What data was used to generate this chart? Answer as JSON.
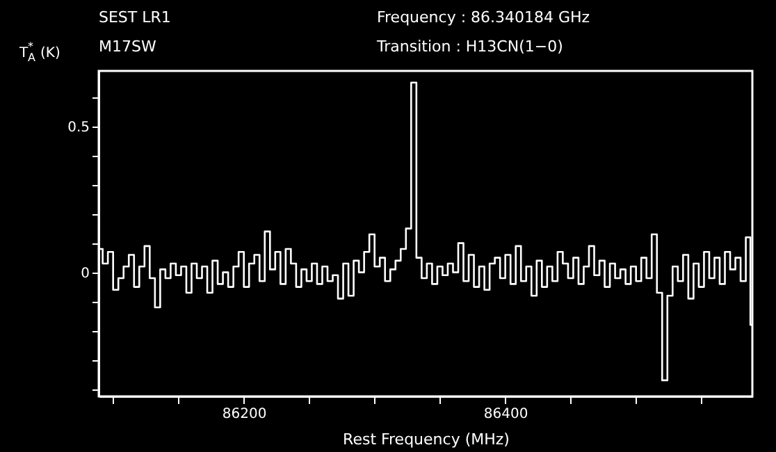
{
  "chart_data": {
    "type": "step",
    "title": "SEST LR1",
    "subtitle": "M17SW",
    "annotations": [
      "Frequency   : 86.340184 GHz",
      "Transition  : H13CN(1−0)"
    ],
    "xlabel": "Rest Frequency (MHz)",
    "ylabel": "T$_{A}$$^{*}$ (K)",
    "x": [
      86090,
      86094,
      86098,
      86102,
      86106,
      86110,
      86114,
      86118,
      86122,
      86126,
      86130,
      86134,
      86138,
      86142,
      86146,
      86150,
      86154,
      86158,
      86162,
      86166,
      86170,
      86174,
      86178,
      86182,
      86186,
      86190,
      86194,
      86198,
      86202,
      86206,
      86210,
      86214,
      86218,
      86222,
      86226,
      86230,
      86234,
      86238,
      86242,
      86246,
      86250,
      86254,
      86258,
      86262,
      86266,
      86270,
      86274,
      86278,
      86282,
      86286,
      86290,
      86294,
      86298,
      86302,
      86306,
      86310,
      86314,
      86318,
      86322,
      86326,
      86330,
      86334,
      86338,
      86342,
      86346,
      86350,
      86354,
      86358,
      86362,
      86366,
      86370,
      86374,
      86378,
      86382,
      86386,
      86390,
      86394,
      86398,
      86402,
      86406,
      86410,
      86414,
      86418,
      86422,
      86426,
      86430,
      86434,
      86438,
      86442,
      86446,
      86450,
      86454,
      86458,
      86462,
      86466,
      86470,
      86474,
      86478,
      86482,
      86486,
      86490,
      86494,
      86498,
      86502,
      86506,
      86510,
      86514,
      86518,
      86522,
      86526,
      86530,
      86534,
      86538,
      86542,
      86546,
      86550,
      86554,
      86558,
      86562,
      86566,
      86570,
      86574,
      86578,
      86582,
      86586,
      86589
    ],
    "series": [
      {
        "color": "#ffffff",
        "values": [
          0.08,
          0.03,
          0.07,
          -0.06,
          -0.02,
          0.02,
          0.06,
          -0.05,
          0.02,
          0.09,
          -0.02,
          -0.12,
          0.01,
          -0.02,
          0.03,
          -0.01,
          0.02,
          -0.07,
          0.03,
          -0.02,
          0.02,
          -0.07,
          0.04,
          -0.04,
          0.0,
          -0.05,
          0.02,
          0.07,
          -0.05,
          0.03,
          0.06,
          -0.03,
          0.14,
          0.01,
          0.07,
          -0.04,
          0.08,
          0.03,
          -0.05,
          0.01,
          -0.03,
          0.03,
          -0.04,
          0.02,
          -0.03,
          -0.01,
          -0.09,
          0.03,
          -0.08,
          0.04,
          0.0,
          0.07,
          0.13,
          0.02,
          0.05,
          -0.03,
          0.01,
          0.04,
          0.08,
          0.15,
          0.65,
          0.05,
          -0.02,
          0.03,
          -0.04,
          0.02,
          -0.01,
          0.03,
          0.0,
          0.1,
          -0.03,
          0.06,
          -0.05,
          0.02,
          -0.06,
          0.03,
          0.05,
          -0.02,
          0.06,
          -0.04,
          0.09,
          -0.03,
          0.02,
          -0.08,
          0.04,
          -0.05,
          0.02,
          -0.03,
          0.07,
          0.03,
          -0.02,
          0.05,
          -0.04,
          0.02,
          0.09,
          -0.01,
          0.04,
          -0.05,
          0.03,
          -0.02,
          0.01,
          -0.04,
          0.02,
          -0.03,
          0.05,
          -0.02,
          0.13,
          -0.07,
          -0.37,
          -0.08,
          0.02,
          -0.03,
          0.06,
          -0.09,
          0.03,
          -0.05,
          0.07,
          -0.02,
          0.05,
          -0.04,
          0.07,
          0.01,
          0.05,
          -0.03,
          0.12,
          -0.18
        ]
      }
    ],
    "xlim": [
      86089,
      86589
    ],
    "xticks": [
      {
        "value": 86100,
        "label": null
      },
      {
        "value": 86150,
        "label": null
      },
      86200,
      {
        "value": 86250,
        "label": null
      },
      {
        "value": 86300,
        "label": null
      },
      {
        "value": 86350,
        "label": null
      },
      86400,
      {
        "value": 86450,
        "label": null
      },
      {
        "value": 86500,
        "label": null
      },
      {
        "value": 86550,
        "label": null
      }
    ],
    "ylim": [
      -0.425,
      0.69
    ],
    "yticks": [
      {
        "value": -0.4,
        "label": null
      },
      {
        "value": -0.3,
        "label": null
      },
      {
        "value": -0.2,
        "label": null
      },
      {
        "value": -0.1,
        "label": null
      },
      0,
      {
        "value": 0.1,
        "label": null
      },
      {
        "value": 0.2,
        "label": null
      },
      {
        "value": 0.3,
        "label": null
      },
      {
        "value": 0.4,
        "label": null
      },
      0.5,
      {
        "value": 0.6,
        "label": null
      }
    ],
    "grid": false,
    "line_style": "solid",
    "marker": "none"
  }
}
